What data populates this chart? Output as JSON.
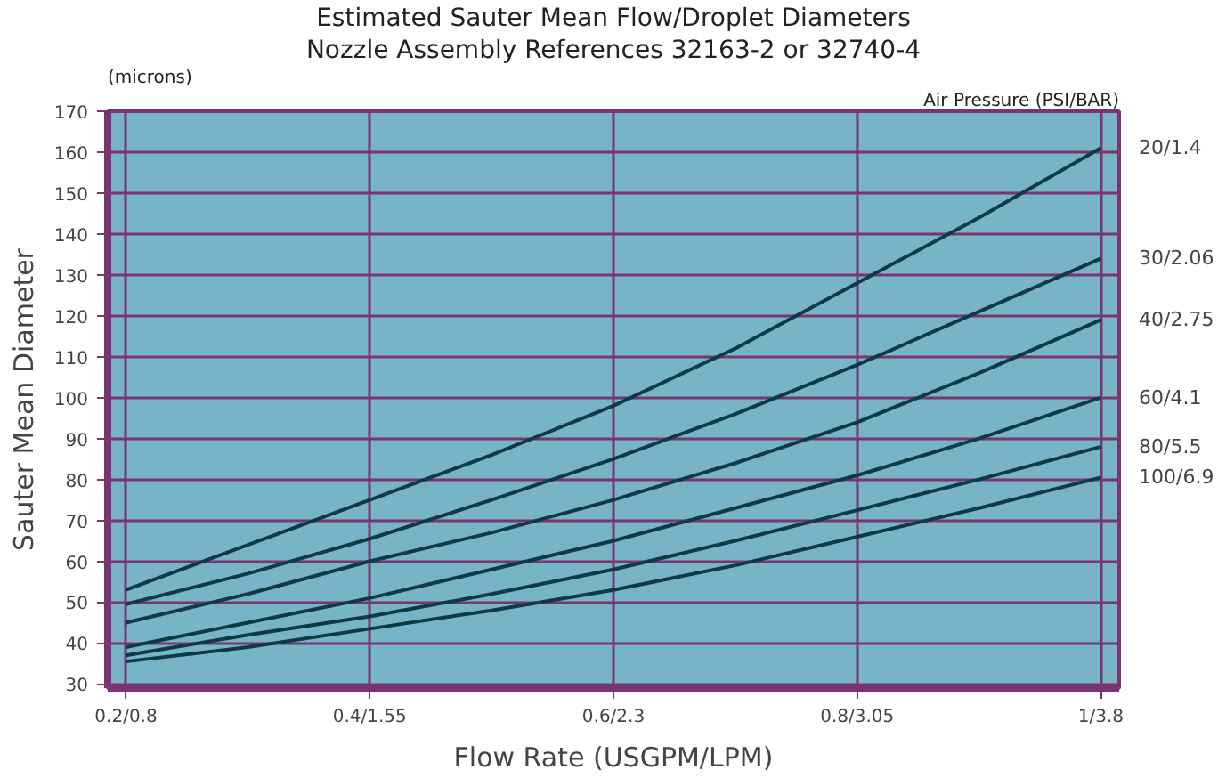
{
  "chart_data": {
    "type": "line",
    "title": "Estimated Sauter Mean Flow/Droplet Diameters",
    "subtitle": "Nozzle Assembly References 32163-2 or 32740-4",
    "xlabel": "Flow Rate (USGPM/LPM)",
    "ylabel": "Sauter Mean Diameter",
    "legend_title": "Air Pressure (PSI/BAR)",
    "annotations": [
      "(microns)"
    ],
    "categories": [
      "0.2/0.8",
      null,
      "0.4/1.55",
      null,
      "0.6/2.3",
      null,
      "0.8/3.05",
      null,
      "1/3.8"
    ],
    "series": [
      {
        "name": "20/1.4",
        "color": "#0e3a48",
        "values": [
          53,
          64,
          75,
          86,
          98,
          112,
          128,
          144,
          161
        ]
      },
      {
        "name": "30/2.06",
        "color": "#0e3a48",
        "values": [
          49.5,
          57,
          65.5,
          75,
          85,
          96,
          108,
          121,
          134
        ]
      },
      {
        "name": "40/2.75",
        "color": "#0e3a48",
        "values": [
          45,
          52,
          60,
          67,
          75,
          84,
          94,
          106,
          119
        ]
      },
      {
        "name": "60/4.1",
        "color": "#0e3a48",
        "values": [
          39,
          45,
          51,
          58,
          65,
          73,
          81,
          90,
          100
        ]
      },
      {
        "name": "80/5.5",
        "color": "#0e3a48",
        "values": [
          37,
          42,
          46.5,
          52,
          58,
          65,
          72.5,
          80,
          88
        ]
      },
      {
        "name": "100/6.9",
        "color": "#0e3a48",
        "values": [
          35.5,
          39,
          43.5,
          48,
          53,
          59,
          66,
          73,
          80.5
        ]
      }
    ],
    "ylim": [
      29,
      170
    ],
    "yticks": [
      30,
      40,
      50,
      60,
      70,
      80,
      90,
      100,
      110,
      120,
      130,
      140,
      150,
      160,
      170
    ],
    "grid": true,
    "legend": "right",
    "line_style": "solid",
    "marker": "none"
  }
}
